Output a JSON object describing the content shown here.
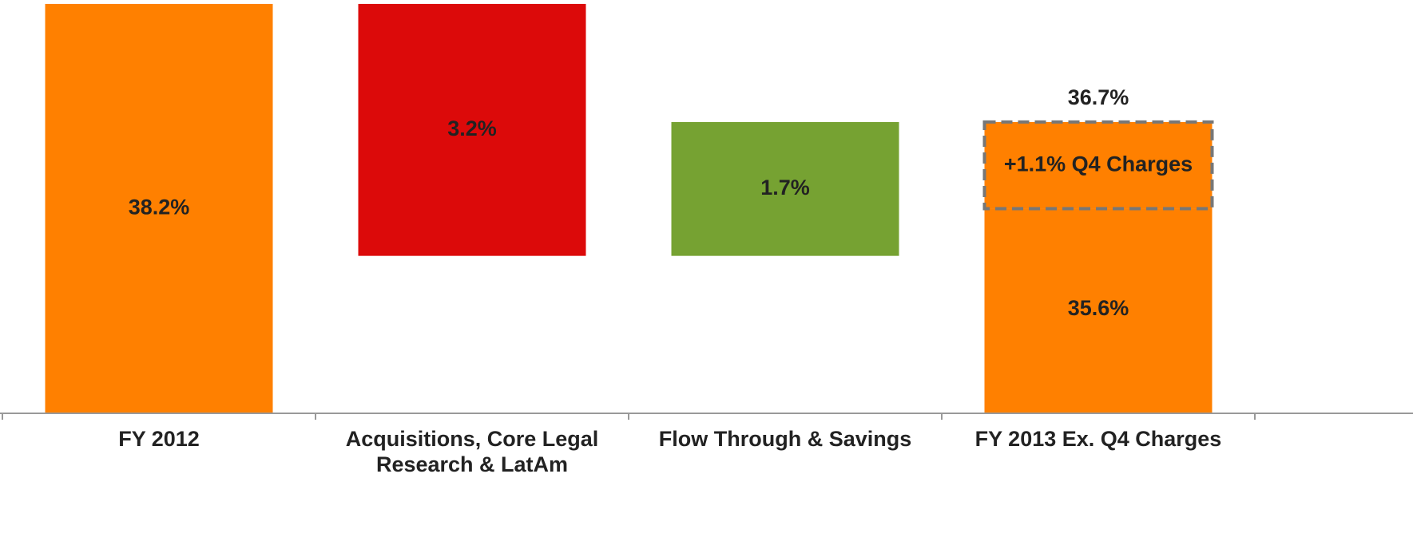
{
  "chart_data": {
    "type": "waterfall",
    "categories": [
      "FY 2012",
      "Acquisitions, Core Legal Research & LatAm",
      "Flow Through & Savings",
      "FY 2013 Ex. Q4 Charges"
    ],
    "values": [
      38.2,
      3.2,
      1.7,
      35.6
    ],
    "value_labels": [
      "38.2%",
      "3.2%",
      "1.7%",
      "35.6%"
    ],
    "measures": [
      "absolute",
      "decrease",
      "increase",
      "absolute"
    ],
    "colors": [
      "#ff8000",
      "#dc0a0a",
      "#76a232",
      "#ff8000"
    ],
    "ylim": [
      33,
      38.25
    ],
    "annotations": [
      {
        "label": "+1.1% Q4 Charges",
        "value": 1.1
      }
    ],
    "total_label": {
      "label": "36.7%",
      "value": 36.7
    }
  }
}
